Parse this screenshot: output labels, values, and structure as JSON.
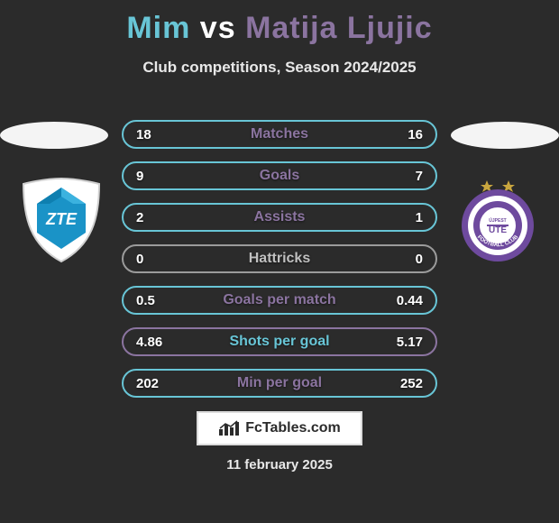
{
  "title": {
    "player1": "Mim",
    "vs": "vs",
    "player2": "Matija Ljujic",
    "player1_color": "#68c5d6",
    "player2_color": "#8b74a0"
  },
  "subtitle": "Club competitions, Season 2024/2025",
  "stats": {
    "rows": [
      {
        "border_color": "#68c5d6",
        "label_color": "#8b74a0",
        "left": "18",
        "label": "Matches",
        "right": "16"
      },
      {
        "border_color": "#68c5d6",
        "label_color": "#8b74a0",
        "left": "9",
        "label": "Goals",
        "right": "7"
      },
      {
        "border_color": "#68c5d6",
        "label_color": "#8b74a0",
        "left": "2",
        "label": "Assists",
        "right": "1"
      },
      {
        "border_color": "#9b9b9b",
        "label_color": "#c0c0c0",
        "left": "0",
        "label": "Hattricks",
        "right": "0"
      },
      {
        "border_color": "#68c5d6",
        "label_color": "#8b74a0",
        "left": "0.5",
        "label": "Goals per match",
        "right": "0.44"
      },
      {
        "border_color": "#8b74a0",
        "label_color": "#68c5d6",
        "left": "4.86",
        "label": "Shots per goal",
        "right": "5.17"
      },
      {
        "border_color": "#68c5d6",
        "label_color": "#8b74a0",
        "left": "202",
        "label": "Min per goal",
        "right": "252"
      }
    ]
  },
  "badge_text": "FcTables.com",
  "date": "11 february 2025",
  "club_left": {
    "shield_fill": "#ffffff",
    "accent": "#1a93c7",
    "letters": "ZTE"
  },
  "club_right": {
    "ring": "#6e4a9e",
    "inner": "#ffffff",
    "letters": "UTE",
    "sub": "FOOTBALL CLUB",
    "star": "#c9a63f"
  }
}
